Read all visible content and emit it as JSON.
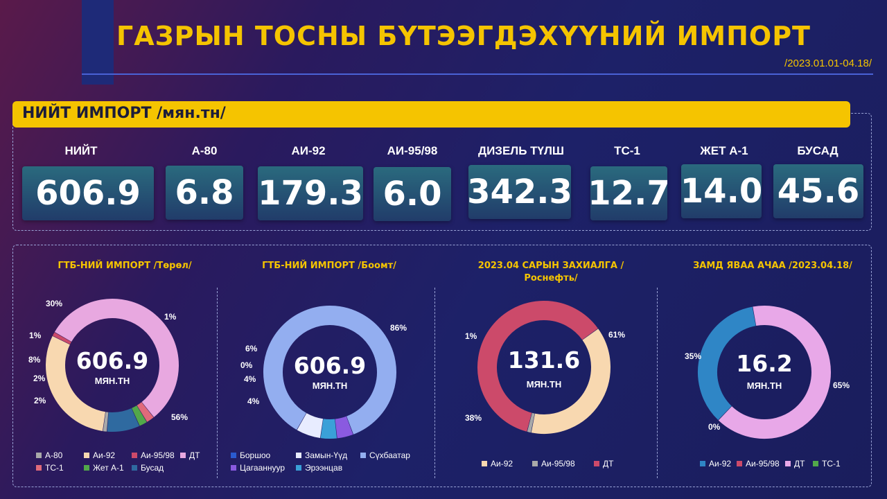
{
  "header": {
    "title": "ГАЗРЫН ТОСНЫ БҮТЭЭГДЭХҮҮНИЙ ИМПОРТ",
    "date_range": "/2023.01.01-04.18/"
  },
  "total_section": {
    "title": "НИЙТ ИМПОРТ /мян.тн/",
    "kpis": [
      {
        "label": "НИЙТ",
        "value": "606.9"
      },
      {
        "label": "А-80",
        "value": "6.8"
      },
      {
        "label": "АИ-92",
        "value": "179.3"
      },
      {
        "label": "АИ-95/98",
        "value": "6.0"
      },
      {
        "label": "ДИЗЕЛЬ ТҮЛШ",
        "value": "342.3"
      },
      {
        "label": "ТС-1",
        "value": "12.7"
      },
      {
        "label": "ЖЕТ А-1",
        "value": "14.0"
      },
      {
        "label": "БУСАД",
        "value": "45.6"
      }
    ]
  },
  "colors": {
    "a80": "#a9a9a9",
    "ai92": "#f8d8b0",
    "ai95": "#cc4a6a",
    "dt": "#e8a8e0",
    "ts1": "#e06a7a",
    "jet": "#52a84a",
    "other": "#2f6aa0",
    "borshoo": "#2a5ad0",
    "zamyn": "#e8ecff",
    "sukhbaatar": "#93aef0",
    "tsagaan": "#8a5ae0",
    "ereentsav": "#3aa0d8",
    "road_ai92": "#2f86c6",
    "road_dt": "#e8a8e8",
    "road_ts1": "#52a84a"
  },
  "chart_data": [
    {
      "type": "pie",
      "title": "ГТБ-НИЙ ИМПОРТ /Төрөл/",
      "center_value": "606.9",
      "center_unit": "МЯН.ТН",
      "slices": [
        {
          "name": "ДТ",
          "value": 56,
          "label": "56%",
          "color": "#e8a8e0"
        },
        {
          "name": "ТС-1",
          "value": 2,
          "label": "2%",
          "color": "#e06a7a"
        },
        {
          "name": "Жет А-1",
          "value": 2,
          "label": "2%",
          "color": "#52a84a"
        },
        {
          "name": "Бусад",
          "value": 8,
          "label": "8%",
          "color": "#2f6aa0"
        },
        {
          "name": "А-80",
          "value": 1,
          "label": "1%",
          "color": "#a9a9a9"
        },
        {
          "name": "Аи-92",
          "value": 30,
          "label": "30%",
          "color": "#f8d8b0"
        },
        {
          "name": "Аи-95/98",
          "value": 1,
          "label": "1%",
          "color": "#cc4a6a"
        }
      ],
      "legend": [
        "А-80",
        "Аи-92",
        "Аи-95/98",
        "ДТ",
        "ТС-1",
        "Жет А-1",
        "Бусад"
      ]
    },
    {
      "type": "pie",
      "title": "ГТБ-НИЙ ИМПОРТ /Боомт/",
      "center_value": "606.9",
      "center_unit": "МЯН.ТН",
      "slices": [
        {
          "name": "Сүхбаатар",
          "value": 86,
          "label": "86%",
          "color": "#93aef0"
        },
        {
          "name": "Цагааннуур",
          "value": 4,
          "label": "4%",
          "color": "#8a5ae0"
        },
        {
          "name": "Эрээнцав",
          "value": 4,
          "label": "4%",
          "color": "#3aa0d8"
        },
        {
          "name": "Боршоо",
          "value": 0,
          "label": "0%",
          "color": "#2a5ad0"
        },
        {
          "name": "Замын-Үүд",
          "value": 6,
          "label": "6%",
          "color": "#e8ecff"
        }
      ],
      "legend": [
        "Боршоо",
        "Замын-Үүд",
        "Сүхбаатар",
        "Цагааннуур",
        "Эрээнцав"
      ]
    },
    {
      "type": "pie",
      "title": "2023.04 САРЫН ЗАХИАЛГА /Роснефть/",
      "center_value": "131.6",
      "center_unit": "МЯН.ТН",
      "slices": [
        {
          "name": "ДТ",
          "value": 61,
          "label": "61%",
          "color": "#cc4a6a"
        },
        {
          "name": "Аи-92",
          "value": 38,
          "label": "38%",
          "color": "#f8d8b0"
        },
        {
          "name": "Аи-95/98",
          "value": 1,
          "label": "1%",
          "color": "#a9a9a9"
        }
      ],
      "legend": [
        "Аи-92",
        "Аи-95/98",
        "ДТ"
      ]
    },
    {
      "type": "pie",
      "title": "ЗАМД ЯВАА АЧАА /2023.04.18/",
      "center_value": "16.2",
      "center_unit": "МЯН.ТН",
      "slices": [
        {
          "name": "ДТ",
          "value": 65,
          "label": "65%",
          "color": "#e8a8e8"
        },
        {
          "name": "Аи-95/98",
          "value": 0,
          "label": "0%",
          "color": "#cc4a6a"
        },
        {
          "name": "Аи-92",
          "value": 35,
          "label": "35%",
          "color": "#2f86c6"
        }
      ],
      "legend": [
        "Аи-92",
        "Аи-95/98",
        "ДТ",
        "ТС-1"
      ]
    }
  ]
}
